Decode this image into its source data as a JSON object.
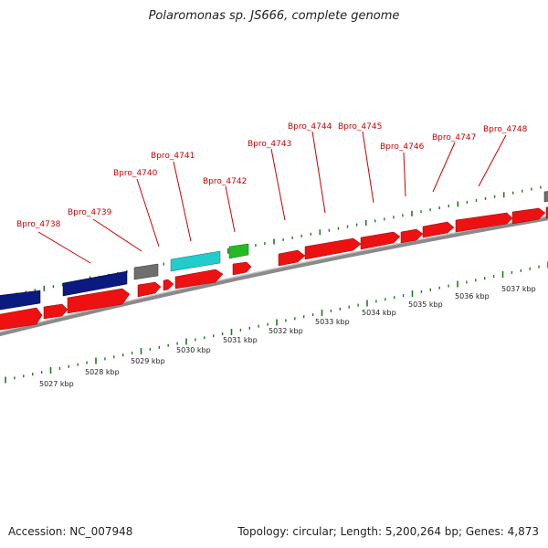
{
  "header": {
    "title": "Polaromonas sp. JS666, complete genome"
  },
  "footer": {
    "accession": "Accession: NC_007948",
    "summary": "Topology: circular; Length: 5,200,264 bp; Genes: 4,873"
  },
  "genome_view": {
    "gene_labels": [
      "Bpro_4738",
      "Bpro_4739",
      "Bpro_4740",
      "Bpro_4741",
      "Bpro_4742",
      "Bpro_4743",
      "Bpro_4744",
      "Bpro_4745",
      "Bpro_4746",
      "Bpro_4747",
      "Bpro_4748"
    ],
    "scale_labels": [
      "5027 kbp",
      "5028 kbp",
      "5029 kbp",
      "5030 kbp",
      "5031 kbp",
      "5032 kbp",
      "5033 kbp",
      "5034 kbp",
      "5035 kbp",
      "5036 kbp",
      "5037 kbp"
    ],
    "colors": {
      "cds": "#ee1111",
      "rna_blue": "#0b1a80",
      "rna_gray": "#6e6e6e",
      "rna_cyan": "#22cccc",
      "rna_green": "#22bb22",
      "label": "#cc0000",
      "tick": "#1e7a1e",
      "backbone": "#8a8a8a"
    }
  }
}
